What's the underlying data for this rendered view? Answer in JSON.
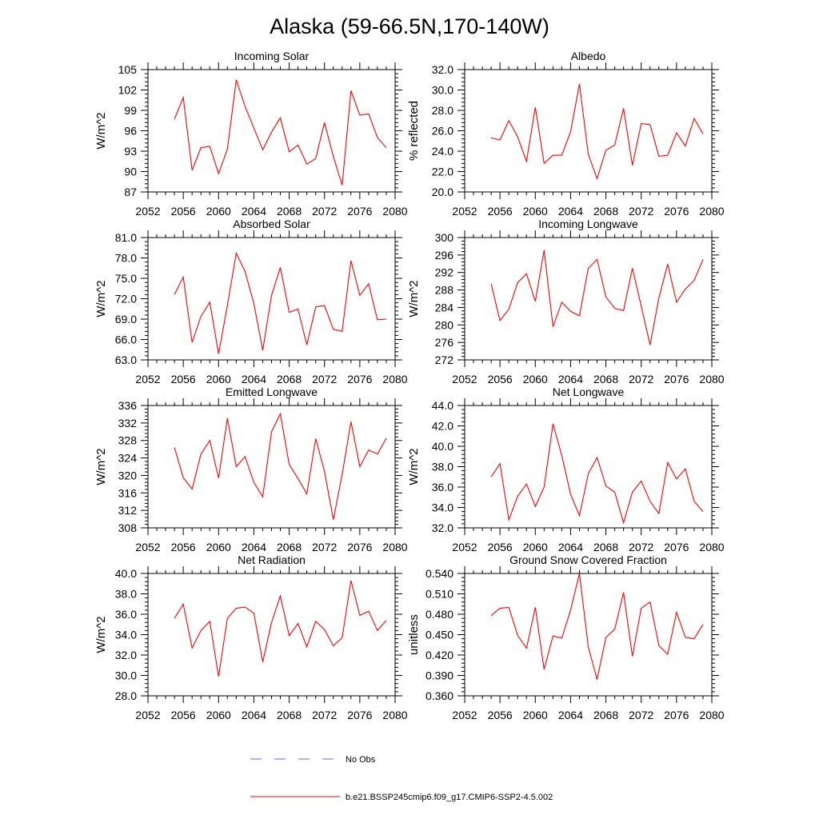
{
  "figure": {
    "title": "Alaska (59-66.5N,170-140W)",
    "legend": [
      {
        "label": "No Obs",
        "color": "#5b6fd6",
        "style": "dashed"
      },
      {
        "label": "b.e21.BSSP245cmip6.f09_g17.CMIP6-SSP2-4.5.002",
        "color": "#ff0000",
        "style": "solid"
      }
    ]
  },
  "chart_data": [
    {
      "type": "line",
      "title": "Incoming Solar",
      "ylabel": "W/m^2",
      "xlim": [
        2052,
        2080
      ],
      "ylim": [
        87,
        105
      ],
      "xticks": [
        "2052",
        "2056",
        "2060",
        "2064",
        "2068",
        "2072",
        "2076",
        "2080"
      ],
      "yticks": [
        "87",
        "90",
        "93",
        "96",
        "99",
        "102",
        "105"
      ],
      "series": [
        {
          "name": "b.e21.BSSP245cmip6.f09_g17.CMIP6-SSP2-4.5.002",
          "color": "#ff0000",
          "x": [
            2055,
            2056,
            2057,
            2058,
            2059,
            2060,
            2061,
            2062,
            2063,
            2064,
            2065,
            2066,
            2067,
            2068,
            2069,
            2070,
            2071,
            2072,
            2073,
            2074,
            2075,
            2076,
            2077,
            2078,
            2079
          ],
          "y": [
            97.7,
            100.9,
            90.2,
            93.5,
            93.7,
            89.7,
            93.3,
            103.5,
            99.6,
            96.4,
            93.2,
            95.8,
            97.9,
            92.9,
            93.9,
            91.1,
            91.9,
            97.2,
            92.2,
            88.0,
            101.9,
            98.3,
            98.5,
            95.0,
            93.5
          ]
        }
      ]
    },
    {
      "type": "line",
      "title": "Albedo",
      "ylabel": "% reflected",
      "xlim": [
        2052,
        2080
      ],
      "ylim": [
        20,
        32
      ],
      "xticks": [
        "2052",
        "2056",
        "2060",
        "2064",
        "2068",
        "2072",
        "2076",
        "2080"
      ],
      "yticks": [
        "20.0",
        "22.0",
        "24.0",
        "26.0",
        "28.0",
        "30.0",
        "32.0"
      ],
      "series": [
        {
          "name": "b.e21.BSSP245cmip6.f09_g17.CMIP6-SSP2-4.5.002",
          "color": "#ff0000",
          "x": [
            2055,
            2056,
            2057,
            2058,
            2059,
            2060,
            2061,
            2062,
            2063,
            2064,
            2065,
            2066,
            2067,
            2068,
            2069,
            2070,
            2071,
            2072,
            2073,
            2074,
            2075,
            2076,
            2077,
            2078,
            2079
          ],
          "y": [
            25.3,
            25.1,
            27.0,
            25.4,
            23.0,
            28.3,
            22.8,
            23.6,
            23.6,
            25.9,
            30.6,
            23.7,
            21.3,
            24.1,
            24.6,
            28.2,
            22.6,
            26.7,
            26.6,
            23.5,
            23.6,
            25.8,
            24.5,
            27.2,
            25.7
          ]
        }
      ]
    },
    {
      "type": "line",
      "title": "Absorbed Solar",
      "ylabel": "W/m^2",
      "xlim": [
        2052,
        2080
      ],
      "ylim": [
        63,
        81
      ],
      "xticks": [
        "2052",
        "2056",
        "2060",
        "2064",
        "2068",
        "2072",
        "2076",
        "2080"
      ],
      "yticks": [
        "63.0",
        "66.0",
        "69.0",
        "72.0",
        "75.0",
        "78.0",
        "81.0"
      ],
      "series": [
        {
          "name": "b.e21.BSSP245cmip6.f09_g17.CMIP6-SSP2-4.5.002",
          "color": "#ff0000",
          "x": [
            2055,
            2056,
            2057,
            2058,
            2059,
            2060,
            2061,
            2062,
            2063,
            2064,
            2065,
            2066,
            2067,
            2068,
            2069,
            2070,
            2071,
            2072,
            2073,
            2074,
            2075,
            2076,
            2077,
            2078,
            2079
          ],
          "y": [
            72.6,
            75.2,
            65.6,
            69.4,
            71.5,
            63.9,
            71.0,
            78.7,
            76.0,
            71.3,
            64.4,
            72.5,
            76.6,
            70.0,
            70.5,
            65.2,
            70.8,
            71.0,
            67.5,
            67.2,
            77.6,
            72.5,
            74.2,
            68.9,
            69.0
          ]
        }
      ]
    },
    {
      "type": "line",
      "title": "Incoming Longwave",
      "ylabel": "W/m^2",
      "xlim": [
        2052,
        2080
      ],
      "ylim": [
        272,
        300
      ],
      "xticks": [
        "2052",
        "2056",
        "2060",
        "2064",
        "2068",
        "2072",
        "2076",
        "2080"
      ],
      "yticks": [
        "272",
        "276",
        "280",
        "284",
        "288",
        "292",
        "296",
        "300"
      ],
      "series": [
        {
          "name": "b.e21.BSSP245cmip6.f09_g17.CMIP6-SSP2-4.5.002",
          "color": "#ff0000",
          "x": [
            2055,
            2056,
            2057,
            2058,
            2059,
            2060,
            2061,
            2062,
            2063,
            2064,
            2065,
            2066,
            2067,
            2068,
            2069,
            2070,
            2071,
            2072,
            2073,
            2074,
            2075,
            2076,
            2077,
            2078,
            2079
          ],
          "y": [
            289.4,
            281.0,
            283.6,
            289.7,
            291.7,
            285.4,
            297.1,
            279.6,
            285.2,
            283.1,
            282.1,
            292.9,
            295.0,
            286.4,
            283.8,
            283.3,
            293.0,
            284.3,
            275.4,
            286.2,
            293.9,
            285.2,
            288.2,
            290.2,
            295.0
          ]
        }
      ]
    },
    {
      "type": "line",
      "title": "Emitted Longwave",
      "ylabel": "W/m^2",
      "xlim": [
        2052,
        2080
      ],
      "ylim": [
        308,
        336
      ],
      "xticks": [
        "2052",
        "2056",
        "2060",
        "2064",
        "2068",
        "2072",
        "2076",
        "2080"
      ],
      "yticks": [
        "308",
        "312",
        "316",
        "320",
        "324",
        "328",
        "332",
        "336"
      ],
      "series": [
        {
          "name": "b.e21.BSSP245cmip6.f09_g17.CMIP6-SSP2-4.5.002",
          "color": "#ff0000",
          "x": [
            2055,
            2056,
            2057,
            2058,
            2059,
            2060,
            2061,
            2062,
            2063,
            2064,
            2065,
            2066,
            2067,
            2068,
            2069,
            2070,
            2071,
            2072,
            2073,
            2074,
            2075,
            2076,
            2077,
            2078,
            2079
          ],
          "y": [
            326.4,
            319.5,
            316.9,
            324.9,
            328.0,
            319.4,
            333.1,
            322.0,
            324.3,
            318.4,
            315.1,
            330.0,
            334.1,
            322.5,
            319.3,
            315.8,
            328.4,
            320.9,
            309.9,
            320.2,
            332.3,
            322.0,
            325.8,
            324.9,
            328.5
          ]
        }
      ]
    },
    {
      "type": "line",
      "title": "Net Longwave",
      "ylabel": "W/m^2",
      "xlim": [
        2052,
        2080
      ],
      "ylim": [
        32,
        44
      ],
      "xticks": [
        "2052",
        "2056",
        "2060",
        "2064",
        "2068",
        "2072",
        "2076",
        "2080"
      ],
      "yticks": [
        "32.0",
        "34.0",
        "36.0",
        "38.0",
        "40.0",
        "42.0",
        "44.0"
      ],
      "series": [
        {
          "name": "b.e21.BSSP245cmip6.f09_g17.CMIP6-SSP2-4.5.002",
          "color": "#ff0000",
          "x": [
            2055,
            2056,
            2057,
            2058,
            2059,
            2060,
            2061,
            2062,
            2063,
            2064,
            2065,
            2066,
            2067,
            2068,
            2069,
            2070,
            2071,
            2072,
            2073,
            2074,
            2075,
            2076,
            2077,
            2078,
            2079
          ],
          "y": [
            37.0,
            38.3,
            32.8,
            35.1,
            36.3,
            34.1,
            36.0,
            42.2,
            39.1,
            35.3,
            33.2,
            37.3,
            38.9,
            36.1,
            35.5,
            32.5,
            35.5,
            36.6,
            34.6,
            33.4,
            38.4,
            36.8,
            37.8,
            34.6,
            33.6
          ]
        }
      ]
    },
    {
      "type": "line",
      "title": "Net Radiation",
      "ylabel": "W/m^2",
      "xlim": [
        2052,
        2080
      ],
      "ylim": [
        28,
        40
      ],
      "xticks": [
        "2052",
        "2056",
        "2060",
        "2064",
        "2068",
        "2072",
        "2076",
        "2080"
      ],
      "yticks": [
        "28.0",
        "30.0",
        "32.0",
        "34.0",
        "36.0",
        "38.0",
        "40.0"
      ],
      "series": [
        {
          "name": "b.e21.BSSP245cmip6.f09_g17.CMIP6-SSP2-4.5.002",
          "color": "#ff0000",
          "x": [
            2055,
            2056,
            2057,
            2058,
            2059,
            2060,
            2061,
            2062,
            2063,
            2064,
            2065,
            2066,
            2067,
            2068,
            2069,
            2070,
            2071,
            2072,
            2073,
            2074,
            2075,
            2076,
            2077,
            2078,
            2079
          ],
          "y": [
            35.6,
            37.0,
            32.7,
            34.4,
            35.3,
            29.9,
            35.6,
            36.6,
            36.7,
            36.1,
            31.3,
            35.2,
            37.8,
            33.9,
            35.1,
            32.8,
            35.3,
            34.5,
            32.9,
            33.7,
            39.3,
            35.9,
            36.3,
            34.4,
            35.4
          ]
        }
      ]
    },
    {
      "type": "line",
      "title": "Ground Snow Covered Fraction",
      "ylabel": "unitless",
      "xlim": [
        2052,
        2080
      ],
      "ylim": [
        0.36,
        0.54
      ],
      "xticks": [
        "2052",
        "2056",
        "2060",
        "2064",
        "2068",
        "2072",
        "2076",
        "2080"
      ],
      "yticks": [
        "0.360",
        "0.390",
        "0.420",
        "0.450",
        "0.480",
        "0.510",
        "0.540"
      ],
      "series": [
        {
          "name": "b.e21.BSSP245cmip6.f09_g17.CMIP6-SSP2-4.5.002",
          "color": "#ff0000",
          "x": [
            2055,
            2056,
            2057,
            2058,
            2059,
            2060,
            2061,
            2062,
            2063,
            2064,
            2065,
            2066,
            2067,
            2068,
            2069,
            2070,
            2071,
            2072,
            2073,
            2074,
            2075,
            2076,
            2077,
            2078,
            2079
          ],
          "y": [
            0.478,
            0.489,
            0.49,
            0.449,
            0.43,
            0.49,
            0.399,
            0.448,
            0.445,
            0.486,
            0.54,
            0.432,
            0.384,
            0.446,
            0.458,
            0.512,
            0.418,
            0.489,
            0.498,
            0.434,
            0.421,
            0.483,
            0.446,
            0.444,
            0.465
          ]
        }
      ]
    }
  ]
}
